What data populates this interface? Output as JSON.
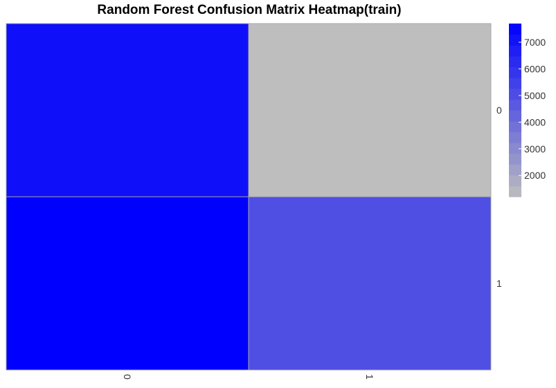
{
  "chart_data": {
    "type": "heatmap",
    "title": "Random Forest Confusion Matrix Heatmap(train)",
    "rows": [
      "0",
      "1"
    ],
    "cols": [
      "0",
      "1"
    ],
    "values": [
      [
        7200,
        1200
      ],
      [
        7700,
        5000
      ]
    ],
    "colorbar": {
      "min": 1200,
      "max": 7700,
      "ticks": [
        2000,
        3000,
        4000,
        5000,
        6000,
        7000
      ],
      "low_color": "#bebebe",
      "high_color": "#0000ff"
    },
    "legend_placement": "right",
    "grid": true
  }
}
